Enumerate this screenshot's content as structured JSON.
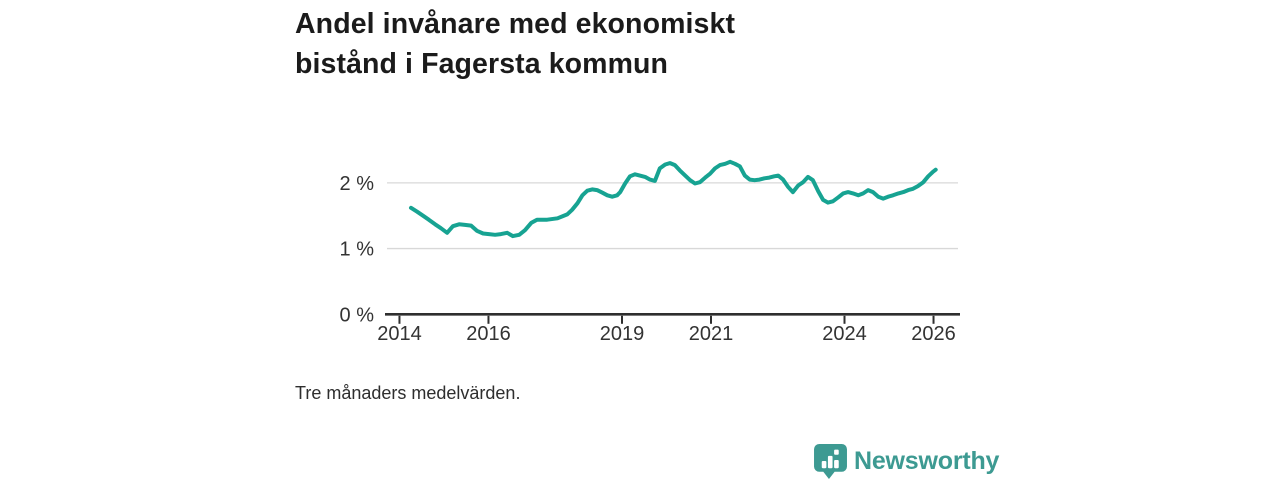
{
  "title": "Andel invånare med ekonomiskt\nbistånd i Fagersta kommun",
  "footnote": "Tre månaders medelvärden.",
  "branding": {
    "name": "Newsworthy",
    "color": "#3d9a92",
    "icon": "newsworthy-speech-bubble-bar-chart"
  },
  "colors": {
    "line": "#17a392",
    "gridline": "#d8d8d8",
    "axis": "#2f2f2f",
    "tick_text": "#333333",
    "title_text": "#1b1b1b"
  },
  "chart_data": {
    "type": "line",
    "title": "Andel invånare med ekonomiskt bistånd i Fagersta kommun",
    "xlabel": "",
    "ylabel": "",
    "unit": "%",
    "grid": "horizontal",
    "legend": "none",
    "xlim": [
      2013.72,
      2026.55
    ],
    "ylim": [
      0,
      2.5
    ],
    "x_ticks": [
      2014,
      2016,
      2019,
      2021,
      2024,
      2026
    ],
    "x_tick_labels": [
      "2014",
      "2016",
      "2019",
      "2021",
      "2024",
      "2026"
    ],
    "y_ticks": [
      0,
      1,
      2
    ],
    "y_tick_labels": [
      "0 %",
      "1 %",
      "2 %"
    ],
    "line_color": "#17a392",
    "points": [
      [
        2014.26,
        1.62
      ],
      [
        2014.4,
        1.56
      ],
      [
        2014.53,
        1.5
      ],
      [
        2014.66,
        1.44
      ],
      [
        2014.8,
        1.37
      ],
      [
        2014.93,
        1.31
      ],
      [
        2015.07,
        1.24
      ],
      [
        2015.2,
        1.34
      ],
      [
        2015.34,
        1.37
      ],
      [
        2015.47,
        1.36
      ],
      [
        2015.61,
        1.35
      ],
      [
        2015.74,
        1.27
      ],
      [
        2015.88,
        1.23
      ],
      [
        2016.01,
        1.22
      ],
      [
        2016.15,
        1.21
      ],
      [
        2016.28,
        1.22
      ],
      [
        2016.42,
        1.24
      ],
      [
        2016.55,
        1.19
      ],
      [
        2016.69,
        1.21
      ],
      [
        2016.82,
        1.28
      ],
      [
        2016.96,
        1.39
      ],
      [
        2017.09,
        1.44
      ],
      [
        2017.32,
        1.44
      ],
      [
        2017.55,
        1.46
      ],
      [
        2017.66,
        1.49
      ],
      [
        2017.77,
        1.52
      ],
      [
        2017.88,
        1.59
      ],
      [
        2018.0,
        1.69
      ],
      [
        2018.11,
        1.81
      ],
      [
        2018.22,
        1.88
      ],
      [
        2018.33,
        1.9
      ],
      [
        2018.44,
        1.89
      ],
      [
        2018.56,
        1.85
      ],
      [
        2018.67,
        1.81
      ],
      [
        2018.78,
        1.79
      ],
      [
        2018.89,
        1.81
      ],
      [
        2018.96,
        1.86
      ],
      [
        2019.07,
        1.99
      ],
      [
        2019.18,
        2.1
      ],
      [
        2019.29,
        2.13
      ],
      [
        2019.4,
        2.11
      ],
      [
        2019.52,
        2.09
      ],
      [
        2019.63,
        2.05
      ],
      [
        2019.74,
        2.03
      ],
      [
        2019.85,
        2.22
      ],
      [
        2019.97,
        2.28
      ],
      [
        2020.08,
        2.3
      ],
      [
        2020.19,
        2.27
      ],
      [
        2020.3,
        2.19
      ],
      [
        2020.42,
        2.11
      ],
      [
        2020.53,
        2.04
      ],
      [
        2020.64,
        1.99
      ],
      [
        2020.75,
        2.01
      ],
      [
        2020.87,
        2.08
      ],
      [
        2020.98,
        2.14
      ],
      [
        2021.09,
        2.22
      ],
      [
        2021.2,
        2.27
      ],
      [
        2021.32,
        2.29
      ],
      [
        2021.43,
        2.32
      ],
      [
        2021.54,
        2.29
      ],
      [
        2021.65,
        2.25
      ],
      [
        2021.76,
        2.11
      ],
      [
        2021.87,
        2.05
      ],
      [
        2021.98,
        2.04
      ],
      [
        2022.09,
        2.05
      ],
      [
        2022.2,
        2.07
      ],
      [
        2022.31,
        2.08
      ],
      [
        2022.42,
        2.1
      ],
      [
        2022.51,
        2.11
      ],
      [
        2022.62,
        2.05
      ],
      [
        2022.73,
        1.94
      ],
      [
        2022.84,
        1.86
      ],
      [
        2022.96,
        1.96
      ],
      [
        2023.07,
        2.01
      ],
      [
        2023.18,
        2.09
      ],
      [
        2023.29,
        2.04
      ],
      [
        2023.41,
        1.87
      ],
      [
        2023.52,
        1.74
      ],
      [
        2023.63,
        1.7
      ],
      [
        2023.74,
        1.72
      ],
      [
        2023.86,
        1.78
      ],
      [
        2023.97,
        1.84
      ],
      [
        2024.08,
        1.86
      ],
      [
        2024.19,
        1.84
      ],
      [
        2024.31,
        1.81
      ],
      [
        2024.42,
        1.84
      ],
      [
        2024.53,
        1.89
      ],
      [
        2024.64,
        1.86
      ],
      [
        2024.76,
        1.79
      ],
      [
        2024.87,
        1.76
      ],
      [
        2024.98,
        1.79
      ],
      [
        2025.09,
        1.81
      ],
      [
        2025.21,
        1.84
      ],
      [
        2025.32,
        1.86
      ],
      [
        2025.43,
        1.89
      ],
      [
        2025.54,
        1.91
      ],
      [
        2025.65,
        1.95
      ],
      [
        2025.77,
        2.01
      ],
      [
        2025.88,
        2.1
      ],
      [
        2025.99,
        2.17
      ],
      [
        2026.05,
        2.2
      ]
    ]
  }
}
